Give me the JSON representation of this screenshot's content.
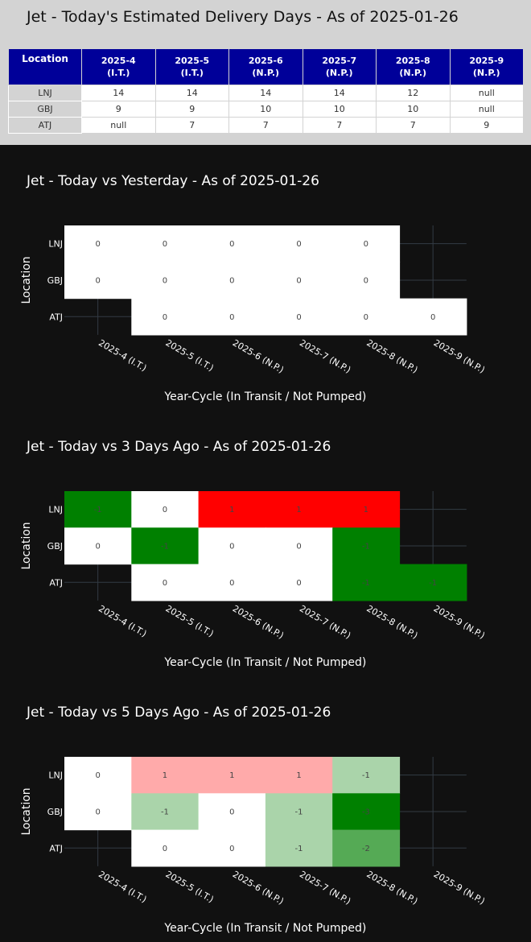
{
  "table": {
    "title": "Jet - Today's Estimated Delivery Days - As of 2025-01-26",
    "location_header": "Location",
    "columns": [
      {
        "line1": "2025-4",
        "line2": "(I.T.)"
      },
      {
        "line1": "2025-5",
        "line2": "(I.T.)"
      },
      {
        "line1": "2025-6",
        "line2": "(N.P.)"
      },
      {
        "line1": "2025-7",
        "line2": "(N.P.)"
      },
      {
        "line1": "2025-8",
        "line2": "(N.P.)"
      },
      {
        "line1": "2025-9",
        "line2": "(N.P.)"
      }
    ],
    "rows": [
      {
        "location": "LNJ",
        "values": [
          "14",
          "14",
          "14",
          "14",
          "12",
          "null"
        ]
      },
      {
        "location": "GBJ",
        "values": [
          "9",
          "9",
          "10",
          "10",
          "10",
          "null"
        ]
      },
      {
        "location": "ATJ",
        "values": [
          "null",
          "7",
          "7",
          "7",
          "7",
          "9"
        ]
      }
    ]
  },
  "chart_data": [
    {
      "type": "heatmap",
      "title": "Jet - Today vs Yesterday - As of 2025-01-26",
      "xlabel": "Year-Cycle (In Transit / Not Pumped)",
      "ylabel": "Location",
      "x": [
        "2025-4 (I.T.)",
        "2025-5 (I.T.)",
        "2025-6 (N.P.)",
        "2025-7 (N.P.)",
        "2025-8 (N.P.)",
        "2025-9 (N.P.)"
      ],
      "y": [
        "LNJ",
        "GBJ",
        "ATJ"
      ],
      "z": [
        [
          0,
          0,
          0,
          0,
          0,
          null
        ],
        [
          0,
          0,
          0,
          0,
          0,
          null
        ],
        [
          null,
          0,
          0,
          0,
          0,
          0
        ]
      ],
      "grid": true
    },
    {
      "type": "heatmap",
      "title": "Jet - Today vs 3 Days Ago - As of 2025-01-26",
      "xlabel": "Year-Cycle (In Transit / Not Pumped)",
      "ylabel": "Location",
      "x": [
        "2025-4 (I.T.)",
        "2025-5 (I.T.)",
        "2025-6 (N.P.)",
        "2025-7 (N.P.)",
        "2025-8 (N.P.)",
        "2025-9 (N.P.)"
      ],
      "y": [
        "LNJ",
        "GBJ",
        "ATJ"
      ],
      "z": [
        [
          -1,
          0,
          1,
          1,
          1,
          null
        ],
        [
          0,
          -1,
          0,
          0,
          -1,
          null
        ],
        [
          null,
          0,
          0,
          0,
          -1,
          -1
        ]
      ],
      "grid": true
    },
    {
      "type": "heatmap",
      "title": "Jet - Today vs 5 Days Ago - As of 2025-01-26",
      "xlabel": "Year-Cycle (In Transit / Not Pumped)",
      "ylabel": "Location",
      "x": [
        "2025-4 (I.T.)",
        "2025-5 (I.T.)",
        "2025-6 (N.P.)",
        "2025-7 (N.P.)",
        "2025-8 (N.P.)",
        "2025-9 (N.P.)"
      ],
      "y": [
        "LNJ",
        "GBJ",
        "ATJ"
      ],
      "z": [
        [
          0,
          1,
          1,
          1,
          -1,
          null
        ],
        [
          0,
          -1,
          0,
          -1,
          -3,
          null
        ],
        [
          null,
          0,
          0,
          -1,
          -2,
          null
        ]
      ],
      "grid": true
    }
  ],
  "colors": {
    "zero": "#ffffff",
    "positive": [
      "#ffaaaa",
      "#ff0000"
    ],
    "negative": [
      "#aad4aa",
      "#55aa55",
      "#008000"
    ],
    "background": "#111111",
    "grid": "#333b44",
    "header": "#000099"
  }
}
